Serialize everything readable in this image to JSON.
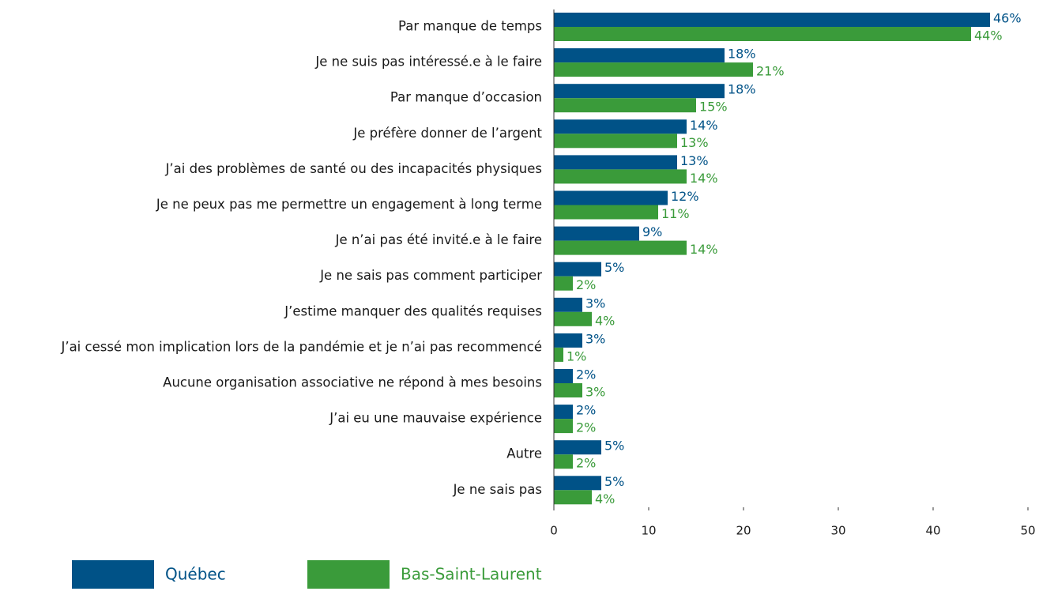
{
  "chart_data": {
    "type": "bar",
    "orientation": "horizontal",
    "categories": [
      "Par manque de temps",
      "Je ne suis pas intéressé.e à le faire",
      "Par manque d’occasion",
      "Je préfère donner de l’argent",
      "J’ai des problèmes de santé ou des incapacités physiques",
      "Je ne peux pas me permettre un engagement à long terme",
      "Je n’ai pas été invité.e à le faire",
      "Je ne sais pas comment participer",
      "J’estime manquer des qualités requises",
      "J’ai cessé mon implication lors de la pandémie et je n’ai pas recommencé",
      "Aucune organisation associative ne répond à mes besoins",
      "J’ai eu une mauvaise expérience",
      "Autre",
      "Je ne sais pas"
    ],
    "series": [
      {
        "name": "Québec",
        "color": "#005287",
        "values": [
          46,
          18,
          18,
          14,
          13,
          12,
          9,
          5,
          3,
          3,
          2,
          2,
          5,
          5
        ],
        "value_labels": [
          "46%",
          "18%",
          "18%",
          "14%",
          "13%",
          "12%",
          "9%",
          "5%",
          "3%",
          "3%",
          "2%",
          "2%",
          "5%",
          "5%"
        ]
      },
      {
        "name": "Bas-Saint-Laurent",
        "color": "#3a9b3a",
        "values": [
          44,
          21,
          15,
          13,
          14,
          11,
          14,
          2,
          4,
          1,
          3,
          2,
          2,
          4
        ],
        "value_labels": [
          "44%",
          "21%",
          "15%",
          "13%",
          "14%",
          "11%",
          "14%",
          "2%",
          "4%",
          "1%",
          "3%",
          "2%",
          "2%",
          "4%"
        ]
      }
    ],
    "xlim": [
      0,
      50
    ],
    "xticks": [
      0,
      10,
      20,
      30,
      40,
      50
    ]
  }
}
